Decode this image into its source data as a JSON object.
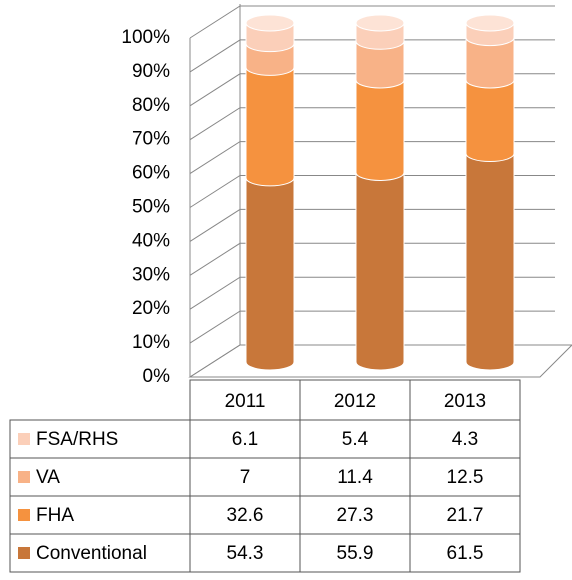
{
  "chart_data": {
    "type": "bar",
    "stacked": true,
    "categories": [
      "2011",
      "2012",
      "2013"
    ],
    "series": [
      {
        "name": "Conventional",
        "color": "#c8773a",
        "values": [
          54.3,
          55.9,
          61.5
        ]
      },
      {
        "name": "FHA",
        "color": "#f5923f",
        "values": [
          32.6,
          27.3,
          21.7
        ]
      },
      {
        "name": "VA",
        "color": "#f8b287",
        "values": [
          7,
          11.4,
          12.5
        ]
      },
      {
        "name": "FSA/RHS",
        "color": "#fbcfb9",
        "values": [
          6.1,
          5.4,
          4.3
        ]
      }
    ],
    "ylim": [
      0,
      100
    ],
    "yticks": [
      {
        "value": 0,
        "label": "0%"
      },
      {
        "value": 10,
        "label": "10%"
      },
      {
        "value": 20,
        "label": "20%"
      },
      {
        "value": 30,
        "label": "30%"
      },
      {
        "value": 40,
        "label": "40%"
      },
      {
        "value": 50,
        "label": "50%"
      },
      {
        "value": 60,
        "label": "60%"
      },
      {
        "value": 70,
        "label": "70%"
      },
      {
        "value": 80,
        "label": "80%"
      },
      {
        "value": 90,
        "label": "90%"
      },
      {
        "value": 100,
        "label": "100%"
      }
    ],
    "grid": true,
    "data_table": true
  }
}
